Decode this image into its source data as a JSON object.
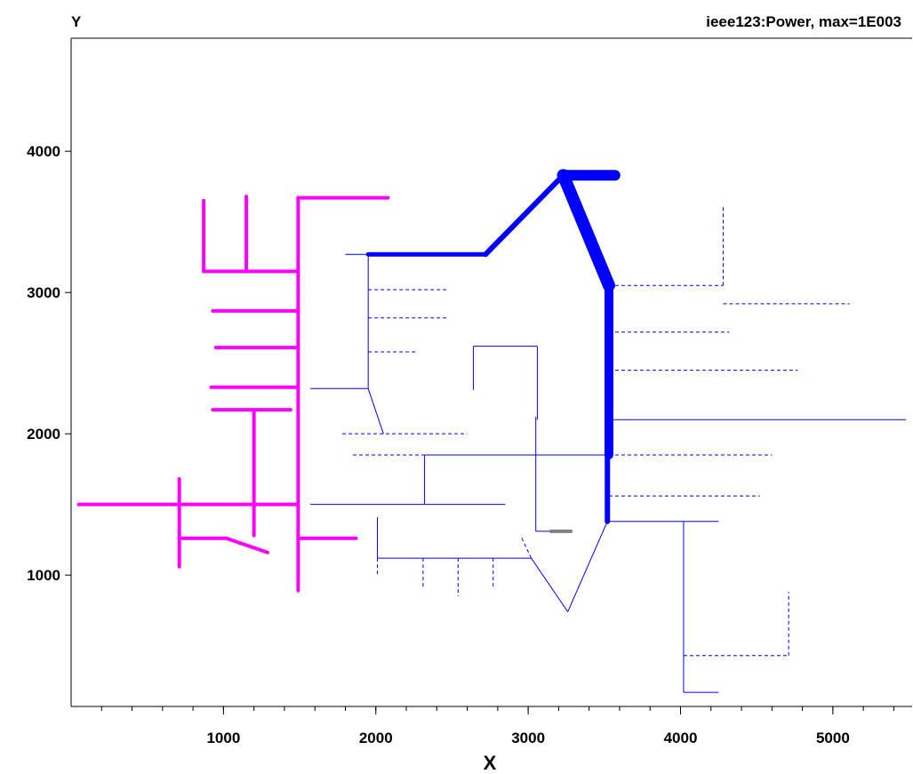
{
  "chart_data": {
    "type": "line",
    "title": "ieee123:Power, max=1E003",
    "xlabel": "X",
    "ylabel": "Y",
    "xlim": [
      0,
      5520
    ],
    "ylim": [
      70,
      4800
    ],
    "x_ticks": [
      1000,
      2000,
      3000,
      4000,
      5000
    ],
    "x_tick_labels": [
      "1000",
      "2000",
      "3000",
      "4000",
      "5000"
    ],
    "y_ticks": [
      1000,
      2000,
      3000,
      4000
    ],
    "y_tick_labels": [
      "1000",
      "2000",
      "3000",
      "4000"
    ],
    "x_minor_step": 200,
    "grid": false,
    "segments": [
      {
        "x1": 3230,
        "y1": 3830,
        "x2": 3570,
        "y2": 3830,
        "color": "#0000ff",
        "width": 12,
        "style": "solid"
      },
      {
        "x1": 3230,
        "y1": 3830,
        "x2": 3530,
        "y2": 3050,
        "color": "#0000ff",
        "width": 14,
        "style": "solid"
      },
      {
        "x1": 3530,
        "y1": 3050,
        "x2": 3530,
        "y2": 1850,
        "color": "#0000ff",
        "width": 10,
        "style": "solid"
      },
      {
        "x1": 3520,
        "y1": 1850,
        "x2": 3520,
        "y2": 1380,
        "color": "#0000ff",
        "width": 6,
        "style": "solid"
      },
      {
        "x1": 3230,
        "y1": 3830,
        "x2": 2720,
        "y2": 3270,
        "color": "#0000ff",
        "width": 6,
        "style": "solid"
      },
      {
        "x1": 2720,
        "y1": 3270,
        "x2": 1950,
        "y2": 3270,
        "color": "#0000ff",
        "width": 5,
        "style": "solid"
      },
      {
        "x1": 1950,
        "y1": 3270,
        "x2": 1800,
        "y2": 3270,
        "color": "#0000ff",
        "width": 1,
        "style": "solid"
      },
      {
        "x1": 1950,
        "y1": 3270,
        "x2": 1950,
        "y2": 2320,
        "color": "#0000ff",
        "width": 1,
        "style": "solid"
      },
      {
        "x1": 1950,
        "y1": 2320,
        "x2": 1570,
        "y2": 2320,
        "color": "#0000ff",
        "width": 1,
        "style": "solid"
      },
      {
        "x1": 1950,
        "y1": 2320,
        "x2": 2050,
        "y2": 2000,
        "color": "#0000ff",
        "width": 1,
        "style": "solid"
      },
      {
        "x1": 1950,
        "y1": 3020,
        "x2": 2470,
        "y2": 3020,
        "color": "#0000ff",
        "width": 1,
        "style": "dashed"
      },
      {
        "x1": 1950,
        "y1": 2820,
        "x2": 2470,
        "y2": 2820,
        "color": "#0000ff",
        "width": 1,
        "style": "dashed"
      },
      {
        "x1": 1950,
        "y1": 2580,
        "x2": 2270,
        "y2": 2580,
        "color": "#0000ff",
        "width": 1,
        "style": "dashed"
      },
      {
        "x1": 1780,
        "y1": 2000,
        "x2": 2600,
        "y2": 2000,
        "color": "#0000ff",
        "width": 1,
        "style": "dashed"
      },
      {
        "x1": 1850,
        "y1": 1850,
        "x2": 2320,
        "y2": 1850,
        "color": "#0000ff",
        "width": 1,
        "style": "dashed"
      },
      {
        "x1": 2320,
        "y1": 1850,
        "x2": 3530,
        "y2": 1850,
        "color": "#0000ff",
        "width": 1,
        "style": "solid"
      },
      {
        "x1": 2320,
        "y1": 1850,
        "x2": 2320,
        "y2": 1500,
        "color": "#0000ff",
        "width": 1,
        "style": "solid"
      },
      {
        "x1": 1570,
        "y1": 1500,
        "x2": 2850,
        "y2": 1500,
        "color": "#0000ff",
        "width": 1,
        "style": "solid"
      },
      {
        "x1": 3050,
        "y1": 1850,
        "x2": 3050,
        "y2": 2120,
        "color": "#0000ff",
        "width": 1,
        "style": "solid"
      },
      {
        "x1": 3050,
        "y1": 1850,
        "x2": 3050,
        "y2": 1310,
        "color": "#0000ff",
        "width": 1,
        "style": "solid"
      },
      {
        "x1": 3050,
        "y1": 1310,
        "x2": 3150,
        "y2": 1310,
        "color": "#0000ff",
        "width": 1,
        "style": "solid"
      },
      {
        "x1": 3150,
        "y1": 1310,
        "x2": 3280,
        "y2": 1310,
        "color": "#808080",
        "width": 4,
        "style": "solid"
      },
      {
        "x1": 2640,
        "y1": 2310,
        "x2": 2640,
        "y2": 2620,
        "color": "#0000ff",
        "width": 1,
        "style": "solid"
      },
      {
        "x1": 2640,
        "y1": 2620,
        "x2": 3060,
        "y2": 2620,
        "color": "#0000ff",
        "width": 1,
        "style": "solid"
      },
      {
        "x1": 3060,
        "y1": 2620,
        "x2": 3060,
        "y2": 2100,
        "color": "#0000ff",
        "width": 1,
        "style": "solid"
      },
      {
        "x1": 3520,
        "y1": 1380,
        "x2": 3260,
        "y2": 740,
        "color": "#0000ff",
        "width": 1,
        "style": "solid"
      },
      {
        "x1": 3260,
        "y1": 740,
        "x2": 3020,
        "y2": 1120,
        "color": "#0000ff",
        "width": 1,
        "style": "solid"
      },
      {
        "x1": 3020,
        "y1": 1120,
        "x2": 2950,
        "y2": 1280,
        "color": "#0000ff",
        "width": 1,
        "style": "dashed"
      },
      {
        "x1": 2010,
        "y1": 1120,
        "x2": 3020,
        "y2": 1120,
        "color": "#0000ff",
        "width": 1,
        "style": "solid"
      },
      {
        "x1": 2010,
        "y1": 1120,
        "x2": 2010,
        "y2": 1410,
        "color": "#0000ff",
        "width": 1,
        "style": "solid"
      },
      {
        "x1": 2010,
        "y1": 1120,
        "x2": 2010,
        "y2": 990,
        "color": "#0000ff",
        "width": 1,
        "style": "dashed"
      },
      {
        "x1": 2310,
        "y1": 1120,
        "x2": 2310,
        "y2": 900,
        "color": "#0000ff",
        "width": 1,
        "style": "dashed"
      },
      {
        "x1": 2540,
        "y1": 1120,
        "x2": 2540,
        "y2": 850,
        "color": "#0000ff",
        "width": 1,
        "style": "dashed"
      },
      {
        "x1": 2770,
        "y1": 1120,
        "x2": 2770,
        "y2": 900,
        "color": "#0000ff",
        "width": 1,
        "style": "dashed"
      },
      {
        "x1": 3530,
        "y1": 3050,
        "x2": 4280,
        "y2": 3050,
        "color": "#0000ff",
        "width": 1,
        "style": "dashed"
      },
      {
        "x1": 4280,
        "y1": 3050,
        "x2": 4280,
        "y2": 3610,
        "color": "#0000ff",
        "width": 1,
        "style": "dashed"
      },
      {
        "x1": 4280,
        "y1": 2920,
        "x2": 5110,
        "y2": 2920,
        "color": "#0000ff",
        "width": 1,
        "style": "dashed"
      },
      {
        "x1": 3530,
        "y1": 2720,
        "x2": 4320,
        "y2": 2720,
        "color": "#0000ff",
        "width": 1,
        "style": "dashed"
      },
      {
        "x1": 3530,
        "y1": 2450,
        "x2": 4770,
        "y2": 2450,
        "color": "#0000ff",
        "width": 1,
        "style": "dashed"
      },
      {
        "x1": 3530,
        "y1": 2100,
        "x2": 5480,
        "y2": 2100,
        "color": "#0000ff",
        "width": 1,
        "style": "solid"
      },
      {
        "x1": 3530,
        "y1": 1850,
        "x2": 4600,
        "y2": 1850,
        "color": "#0000ff",
        "width": 1,
        "style": "dashed"
      },
      {
        "x1": 3530,
        "y1": 1560,
        "x2": 4520,
        "y2": 1560,
        "color": "#0000ff",
        "width": 1,
        "style": "dashed"
      },
      {
        "x1": 3520,
        "y1": 1380,
        "x2": 4250,
        "y2": 1380,
        "color": "#0000ff",
        "width": 1,
        "style": "solid"
      },
      {
        "x1": 4020,
        "y1": 1380,
        "x2": 4020,
        "y2": 170,
        "color": "#0000ff",
        "width": 1,
        "style": "solid"
      },
      {
        "x1": 4020,
        "y1": 170,
        "x2": 4250,
        "y2": 170,
        "color": "#0000ff",
        "width": 1,
        "style": "solid"
      },
      {
        "x1": 4020,
        "y1": 430,
        "x2": 4710,
        "y2": 430,
        "color": "#0000ff",
        "width": 1,
        "style": "dashed"
      },
      {
        "x1": 4710,
        "y1": 430,
        "x2": 4710,
        "y2": 880,
        "color": "#0000ff",
        "width": 1,
        "style": "dashed"
      },
      {
        "x1": 1490,
        "y1": 3670,
        "x2": 1490,
        "y2": 890,
        "color": "#ff00ff",
        "width": 4,
        "style": "solid"
      },
      {
        "x1": 1490,
        "y1": 3670,
        "x2": 2080,
        "y2": 3670,
        "color": "#ff00ff",
        "width": 4,
        "style": "solid"
      },
      {
        "x1": 870,
        "y1": 3150,
        "x2": 1490,
        "y2": 3150,
        "color": "#ff00ff",
        "width": 4,
        "style": "solid"
      },
      {
        "x1": 870,
        "y1": 3150,
        "x2": 870,
        "y2": 3650,
        "color": "#ff00ff",
        "width": 4,
        "style": "solid"
      },
      {
        "x1": 1150,
        "y1": 3150,
        "x2": 1150,
        "y2": 3680,
        "color": "#ff00ff",
        "width": 4,
        "style": "solid"
      },
      {
        "x1": 930,
        "y1": 2870,
        "x2": 1490,
        "y2": 2870,
        "color": "#ff00ff",
        "width": 4,
        "style": "solid"
      },
      {
        "x1": 950,
        "y1": 2610,
        "x2": 1490,
        "y2": 2610,
        "color": "#ff00ff",
        "width": 4,
        "style": "solid"
      },
      {
        "x1": 920,
        "y1": 2330,
        "x2": 1490,
        "y2": 2330,
        "color": "#ff00ff",
        "width": 4,
        "style": "solid"
      },
      {
        "x1": 930,
        "y1": 2170,
        "x2": 1440,
        "y2": 2170,
        "color": "#ff00ff",
        "width": 4,
        "style": "solid"
      },
      {
        "x1": 1200,
        "y1": 2170,
        "x2": 1200,
        "y2": 1280,
        "color": "#ff00ff",
        "width": 4,
        "style": "solid"
      },
      {
        "x1": 50,
        "y1": 1500,
        "x2": 1490,
        "y2": 1500,
        "color": "#ff00ff",
        "width": 4,
        "style": "solid"
      },
      {
        "x1": 710,
        "y1": 1680,
        "x2": 710,
        "y2": 1060,
        "color": "#ff00ff",
        "width": 4,
        "style": "solid"
      },
      {
        "x1": 710,
        "y1": 1260,
        "x2": 1020,
        "y2": 1260,
        "color": "#ff00ff",
        "width": 4,
        "style": "solid"
      },
      {
        "x1": 1020,
        "y1": 1260,
        "x2": 1290,
        "y2": 1160,
        "color": "#ff00ff",
        "width": 4,
        "style": "solid"
      },
      {
        "x1": 1490,
        "y1": 1260,
        "x2": 1870,
        "y2": 1260,
        "color": "#ff00ff",
        "width": 4,
        "style": "solid"
      }
    ]
  }
}
